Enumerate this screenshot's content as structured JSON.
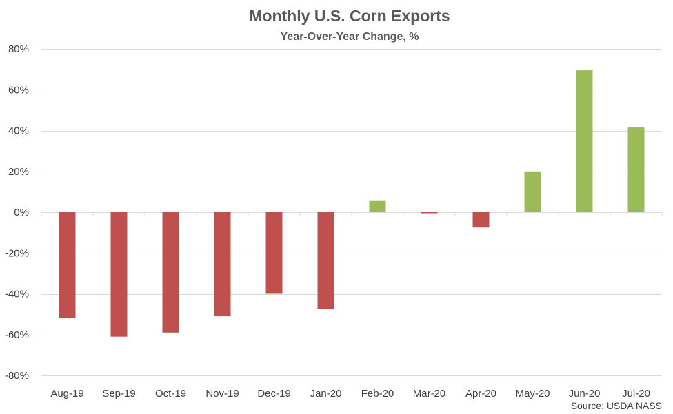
{
  "chart_data": {
    "type": "bar",
    "title": "Monthly U.S. Corn Exports",
    "subtitle": "Year-Over-Year Change, %",
    "categories": [
      "Aug-19",
      "Sep-19",
      "Oct-19",
      "Nov-19",
      "Dec-19",
      "Jan-20",
      "Feb-20",
      "Mar-20",
      "Apr-20",
      "May-20",
      "Jun-20",
      "Jul-20"
    ],
    "values": [
      -52,
      -61,
      -59,
      -51,
      -40,
      -47.5,
      5.5,
      -0.5,
      -7.5,
      20,
      69.5,
      41.5
    ],
    "unit": "%",
    "ylim": [
      -80,
      80
    ],
    "yticks": [
      80,
      60,
      40,
      20,
      0,
      -20,
      -40,
      -60,
      -80
    ],
    "ytick_labels": [
      "80%",
      "60%",
      "40%",
      "20%",
      "0%",
      "-20%",
      "-40%",
      "-60%",
      "-80%"
    ],
    "grid": true,
    "legend": "none",
    "colors": {
      "positive": "#9bbb59",
      "negative": "#c0504d",
      "grid": "#d9d9d9",
      "text": "#404040",
      "title": "#595959"
    },
    "source": "Source: USDA NASS"
  }
}
